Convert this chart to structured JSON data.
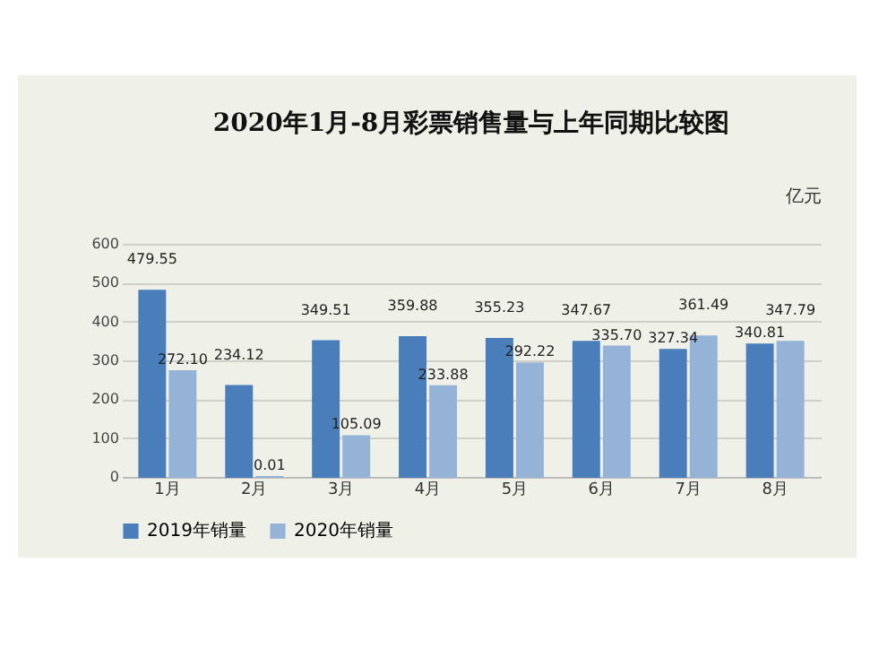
{
  "chart_data": {
    "type": "bar",
    "title": "2020年1月-8月彩票销售量与上年同期比较图",
    "ylabel": "亿元",
    "categories": [
      "1月",
      "2月",
      "3月",
      "4月",
      "5月",
      "6月",
      "7月",
      "8月"
    ],
    "series": [
      {
        "name": "2019年销量",
        "color": "#4a7ebb",
        "values": [
          479.55,
          234.12,
          349.51,
          359.88,
          355.23,
          347.67,
          327.34,
          340.81
        ],
        "value_labels": [
          "479.55",
          "234.12",
          "349.51",
          "359.88",
          "355.23",
          "347.67",
          "327.34",
          "340.81"
        ]
      },
      {
        "name": "2020年销量",
        "color": "#95b3d7",
        "values": [
          272.1,
          0.01,
          105.09,
          233.88,
          292.22,
          335.7,
          361.49,
          347.79
        ],
        "value_labels": [
          "272.10",
          "0.01",
          "105.09",
          "233.88",
          "292.22",
          "335.70",
          "361.49",
          "347.79"
        ]
      }
    ],
    "ylim": [
      0,
      600
    ],
    "yticks": [
      0,
      100,
      200,
      300,
      400,
      500,
      600
    ],
    "grid": "y",
    "legend": "bottom"
  }
}
